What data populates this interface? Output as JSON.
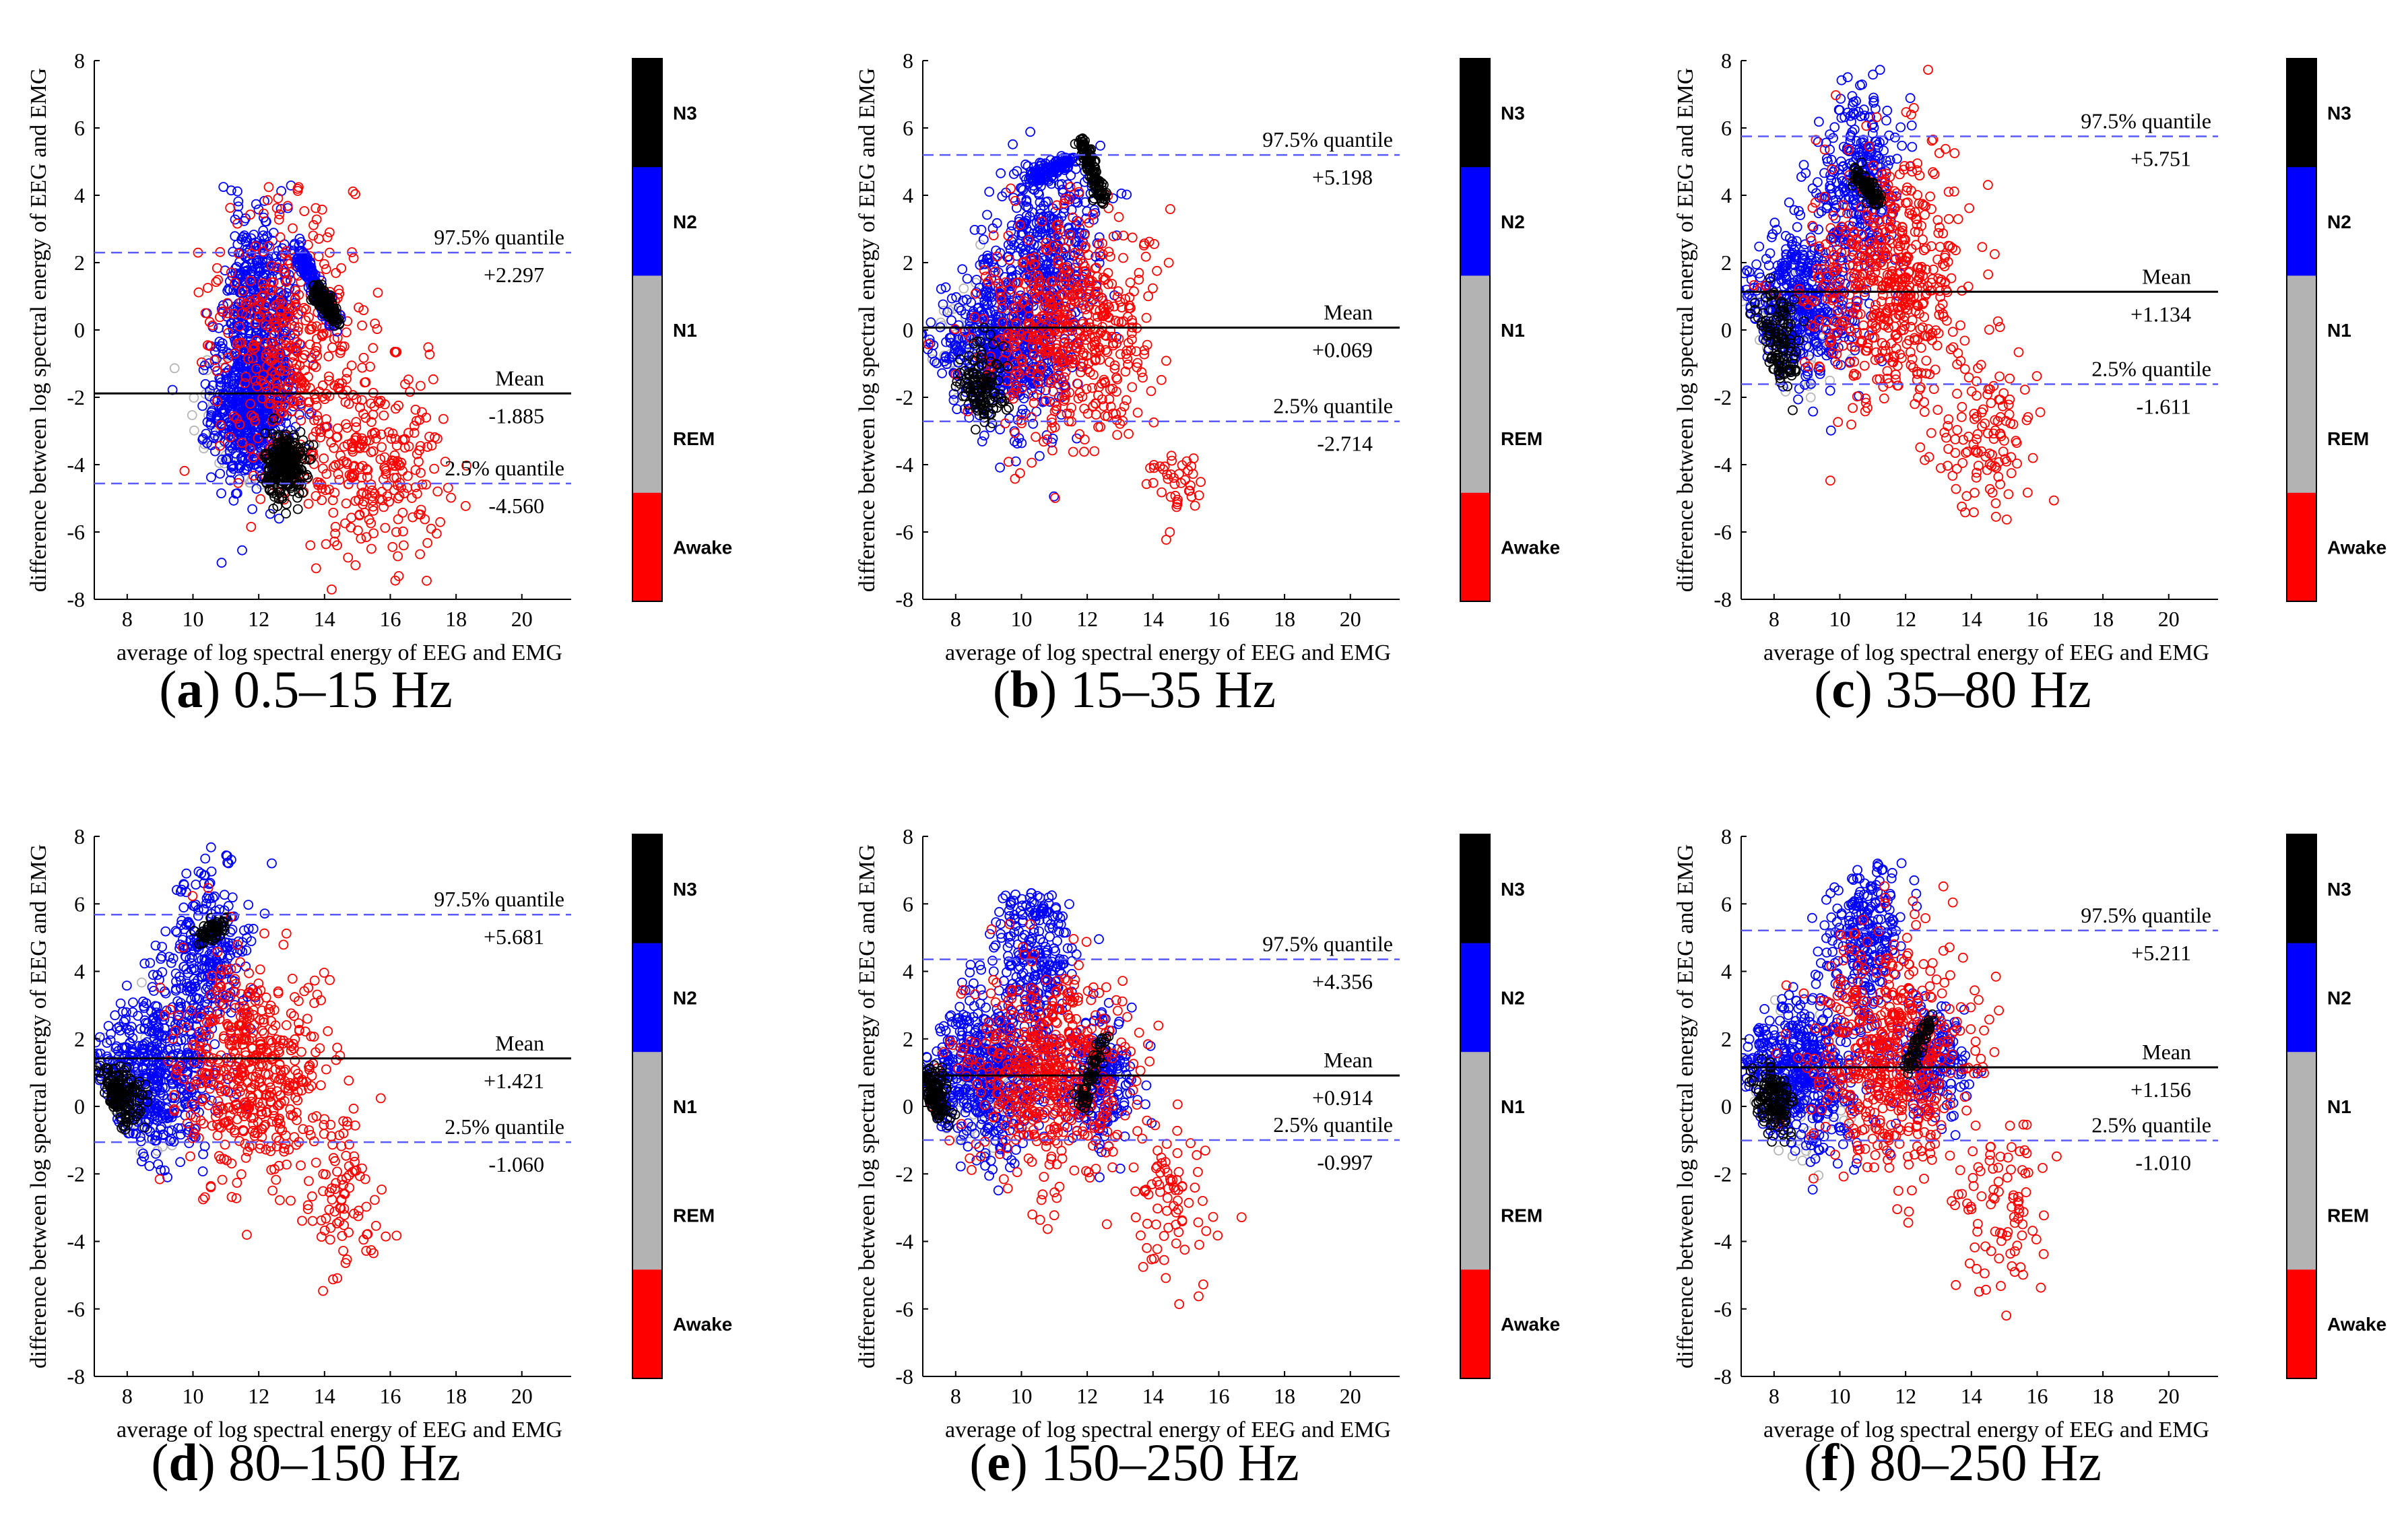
{
  "shared": {
    "xlabel": "average of log spectral energy of EEG and EMG",
    "ylabel": "difference between log spectral energy of EEG and EMG",
    "xlim": [
      7,
      21.5
    ],
    "ylim": [
      -8,
      8
    ],
    "xticks": [
      8,
      10,
      12,
      14,
      16,
      18,
      20
    ],
    "yticks": [
      -8,
      -6,
      -4,
      -2,
      0,
      2,
      4,
      6,
      8
    ],
    "colorbar": {
      "labels": [
        "N3",
        "N2",
        "N1",
        "REM",
        "Awake"
      ],
      "colors": {
        "N3": "#000000",
        "N2": "#0000ff",
        "N1": "#b3b3b3",
        "REM": "#b3b3b3",
        "Awake": "#ff0000"
      }
    },
    "line_labels": {
      "upper": "97.5% quantile",
      "mean": "Mean",
      "lower": "2.5% quantile"
    }
  },
  "chart_data": [
    {
      "type": "scatter",
      "panel": "a",
      "band": "0.5–15 Hz",
      "upper": 2.297,
      "mean": -1.885,
      "lower": -4.56,
      "upper_label": "+2.297",
      "mean_label": "-1.885",
      "lower_label": "-4.560",
      "xbar": 11.6,
      "xspread": 2.4,
      "clusters": [
        {
          "c": "blue",
          "x": 11.8,
          "y": -2.3,
          "sx": 0.6,
          "sy": 1.1,
          "n": 650
        },
        {
          "c": "blue",
          "x": 12.0,
          "y": 0.8,
          "sx": 0.6,
          "sy": 1.5,
          "n": 400
        },
        {
          "c": "red",
          "x": 13.0,
          "y": -0.5,
          "sx": 1.1,
          "sy": 2.0,
          "n": 400
        },
        {
          "c": "red",
          "x": 15.5,
          "y": -4.0,
          "sx": 1.1,
          "sy": 1.4,
          "n": 260
        },
        {
          "c": "black",
          "x": 12.8,
          "y": -4.0,
          "sx": 0.3,
          "sy": 0.5,
          "n": 260
        },
        {
          "c": "gray",
          "x": 11.5,
          "y": -2.5,
          "sx": 0.8,
          "sy": 1.2,
          "n": 90
        }
      ],
      "ridges": [
        {
          "c": "blue",
          "x0": 13.2,
          "y0": 2.3,
          "x1": 14.3,
          "y1": 0.2,
          "n": 200
        },
        {
          "c": "black",
          "x0": 13.7,
          "y0": 1.2,
          "x1": 14.4,
          "y1": 0.3,
          "n": 120
        }
      ]
    },
    {
      "type": "scatter",
      "panel": "b",
      "band": "15–35 Hz",
      "upper": 5.198,
      "mean": 0.069,
      "lower": -2.714,
      "upper_label": "+5.198",
      "mean_label": "+0.069",
      "lower_label": "-2.714",
      "xbar": 10.6,
      "xspread": 2.2,
      "clusters": [
        {
          "c": "blue",
          "x": 9.5,
          "y": -0.5,
          "sx": 0.9,
          "sy": 1.3,
          "n": 600
        },
        {
          "c": "blue",
          "x": 10.8,
          "y": 2.5,
          "sx": 0.8,
          "sy": 1.3,
          "n": 350
        },
        {
          "c": "red",
          "x": 11.5,
          "y": 0.0,
          "sx": 1.2,
          "sy": 1.6,
          "n": 550
        },
        {
          "c": "red",
          "x": 14.8,
          "y": -4.5,
          "sx": 0.4,
          "sy": 0.6,
          "n": 40
        },
        {
          "c": "black",
          "x": 8.8,
          "y": -1.6,
          "sx": 0.4,
          "sy": 0.6,
          "n": 120
        },
        {
          "c": "gray",
          "x": 8.5,
          "y": -0.5,
          "sx": 0.6,
          "sy": 1.0,
          "n": 80
        }
      ],
      "ridges": [
        {
          "c": "black",
          "x0": 11.8,
          "y0": 5.6,
          "x1": 12.5,
          "y1": 3.8,
          "n": 120
        },
        {
          "c": "blue",
          "x0": 10.3,
          "y0": 4.5,
          "x1": 11.5,
          "y1": 5.0,
          "n": 120
        }
      ]
    },
    {
      "type": "scatter",
      "panel": "c",
      "band": "35–80 Hz",
      "upper": 5.751,
      "mean": 1.134,
      "lower": -1.611,
      "upper_label": "+5.751",
      "mean_label": "+1.134",
      "lower_label": "-1.611",
      "xbar": 10.2,
      "xspread": 2.4,
      "clusters": [
        {
          "c": "blue",
          "x": 8.8,
          "y": 0.8,
          "sx": 0.9,
          "sy": 1.3,
          "n": 450
        },
        {
          "c": "blue",
          "x": 10.5,
          "y": 4.5,
          "sx": 0.6,
          "sy": 1.3,
          "n": 300
        },
        {
          "c": "red",
          "x": 11.5,
          "y": 1.5,
          "sx": 1.2,
          "sy": 1.8,
          "n": 550
        },
        {
          "c": "red",
          "x": 14.5,
          "y": -3.0,
          "sx": 0.8,
          "sy": 1.2,
          "n": 120
        },
        {
          "c": "black",
          "x": 8.2,
          "y": -0.5,
          "sx": 0.3,
          "sy": 0.8,
          "n": 120
        },
        {
          "c": "gray",
          "x": 8.5,
          "y": 0.0,
          "sx": 0.8,
          "sy": 1.0,
          "n": 90
        }
      ],
      "ridges": [
        {
          "c": "black",
          "x0": 10.5,
          "y0": 4.6,
          "x1": 11.2,
          "y1": 3.8,
          "n": 80
        }
      ]
    },
    {
      "type": "scatter",
      "panel": "d",
      "band": "80–150 Hz",
      "upper": 5.681,
      "mean": 1.421,
      "lower": -1.06,
      "upper_label": "+5.681",
      "mean_label": "+1.421",
      "lower_label": "-1.060",
      "xbar": 10.2,
      "xspread": 2.4,
      "clusters": [
        {
          "c": "blue",
          "x": 8.8,
          "y": 1.0,
          "sx": 0.9,
          "sy": 1.2,
          "n": 500
        },
        {
          "c": "blue",
          "x": 10.5,
          "y": 4.5,
          "sx": 0.6,
          "sy": 1.4,
          "n": 300
        },
        {
          "c": "red",
          "x": 11.8,
          "y": 1.0,
          "sx": 1.1,
          "sy": 1.6,
          "n": 500
        },
        {
          "c": "red",
          "x": 14.5,
          "y": -2.5,
          "sx": 0.6,
          "sy": 1.2,
          "n": 90
        },
        {
          "c": "black",
          "x": 7.8,
          "y": 0.3,
          "sx": 0.3,
          "sy": 0.5,
          "n": 140
        },
        {
          "c": "gray",
          "x": 8.3,
          "y": 0.5,
          "sx": 0.8,
          "sy": 1.0,
          "n": 80
        }
      ],
      "ridges": [
        {
          "c": "black",
          "x0": 10.2,
          "y0": 5.0,
          "x1": 11.0,
          "y1": 5.4,
          "n": 60
        }
      ]
    },
    {
      "type": "scatter",
      "panel": "e",
      "band": "150–250 Hz",
      "upper": 4.356,
      "mean": 0.914,
      "lower": -0.997,
      "upper_label": "+4.356",
      "mean_label": "+0.914",
      "lower_label": "-0.997",
      "xbar": 10.4,
      "xspread": 2.4,
      "clusters": [
        {
          "c": "blue",
          "x": 8.8,
          "y": 1.0,
          "sx": 1.0,
          "sy": 1.2,
          "n": 550
        },
        {
          "c": "blue",
          "x": 10.4,
          "y": 4.5,
          "sx": 0.6,
          "sy": 1.2,
          "n": 250
        },
        {
          "c": "blue",
          "x": 12.3,
          "y": 0.8,
          "sx": 0.6,
          "sy": 1.0,
          "n": 220
        },
        {
          "c": "red",
          "x": 10.8,
          "y": 1.0,
          "sx": 1.2,
          "sy": 1.5,
          "n": 550
        },
        {
          "c": "red",
          "x": 14.5,
          "y": -3.0,
          "sx": 0.7,
          "sy": 1.2,
          "n": 80
        },
        {
          "c": "black",
          "x": 7.4,
          "y": 0.2,
          "sx": 0.2,
          "sy": 0.5,
          "n": 120
        },
        {
          "c": "gray",
          "x": 8.5,
          "y": 0.5,
          "sx": 0.8,
          "sy": 1.0,
          "n": 80
        }
      ],
      "ridges": [
        {
          "c": "black",
          "x0": 11.8,
          "y0": 0.0,
          "x1": 12.5,
          "y1": 2.0,
          "n": 70
        }
      ]
    },
    {
      "type": "scatter",
      "panel": "f",
      "band": "80–250 Hz",
      "upper": 5.211,
      "mean": 1.156,
      "lower": -1.01,
      "upper_label": "+5.211",
      "mean_label": "+1.156",
      "lower_label": "-1.010",
      "xbar": 10.4,
      "xspread": 2.5,
      "clusters": [
        {
          "c": "blue",
          "x": 8.8,
          "y": 1.0,
          "sx": 0.9,
          "sy": 1.2,
          "n": 500
        },
        {
          "c": "blue",
          "x": 10.8,
          "y": 5.0,
          "sx": 0.6,
          "sy": 1.2,
          "n": 250
        },
        {
          "c": "blue",
          "x": 12.8,
          "y": 1.3,
          "sx": 0.7,
          "sy": 0.9,
          "n": 200
        },
        {
          "c": "red",
          "x": 11.5,
          "y": 1.5,
          "sx": 1.2,
          "sy": 1.7,
          "n": 550
        },
        {
          "c": "red",
          "x": 15.0,
          "y": -2.8,
          "sx": 0.7,
          "sy": 1.3,
          "n": 90
        },
        {
          "c": "black",
          "x": 8.0,
          "y": 0.2,
          "sx": 0.3,
          "sy": 0.5,
          "n": 130
        },
        {
          "c": "gray",
          "x": 8.6,
          "y": 0.5,
          "sx": 0.8,
          "sy": 1.0,
          "n": 80
        }
      ],
      "ridges": [
        {
          "c": "black",
          "x0": 12.0,
          "y0": 1.2,
          "x1": 12.8,
          "y1": 2.6,
          "n": 60
        }
      ]
    }
  ]
}
